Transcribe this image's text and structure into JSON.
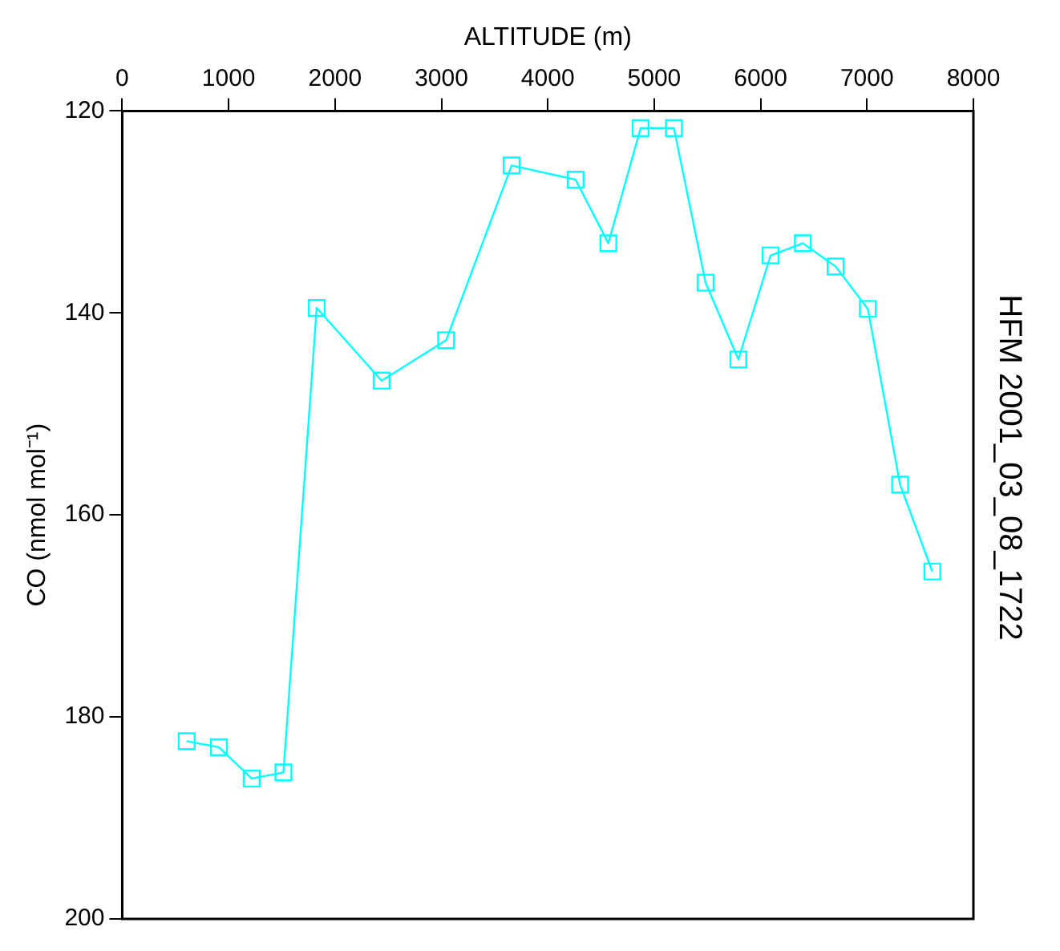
{
  "chart_data": {
    "type": "line",
    "title": "HFM 2001_03_08_1722",
    "xlabel": "ALTITUDE (m)",
    "ylabel": "CO (nmol mol⁻¹)",
    "x": [
      606,
      909,
      1217,
      1515,
      1828,
      2438,
      3044,
      3660,
      4261,
      4569,
      4872,
      5185,
      5483,
      5791,
      6094,
      6397,
      6705,
      7008,
      7311,
      7614
    ],
    "series": [
      {
        "color": "#00ffff",
        "values": [
          182.4,
          183.0,
          186.1,
          185.5,
          139.5,
          146.7,
          142.7,
          125.4,
          126.8,
          133.1,
          121.7,
          121.7,
          137.0,
          144.6,
          134.3,
          133.1,
          135.4,
          139.6,
          157.0,
          165.6
        ]
      }
    ],
    "xlim": [
      0,
      8000
    ],
    "xticks": [
      0,
      1000,
      2000,
      3000,
      4000,
      5000,
      6000,
      7000,
      8000
    ],
    "ylim": [
      200,
      120
    ],
    "yticks": [
      120,
      140,
      160,
      180,
      200
    ],
    "grid": false,
    "legend": false,
    "marker": "square",
    "line_style": "solid"
  }
}
